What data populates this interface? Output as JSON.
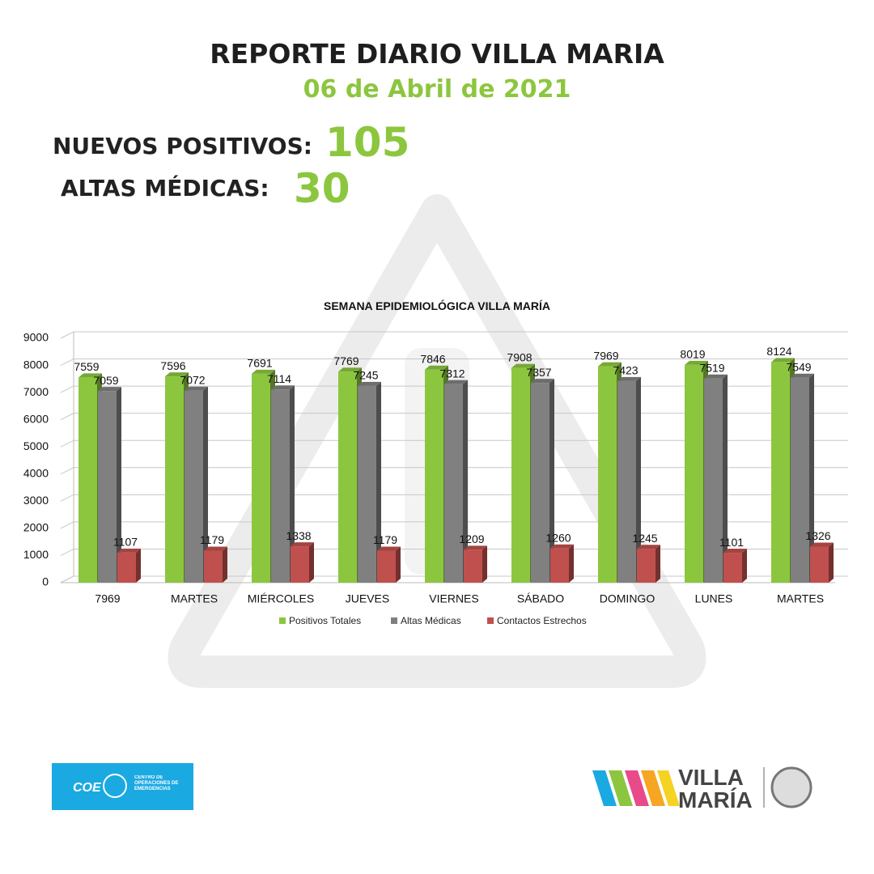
{
  "header": {
    "title": "REPORTE DIARIO VILLA MARIA",
    "date": "06 de Abril de 2021",
    "stats": [
      {
        "label": "NUEVOS POSITIVOS:",
        "value": 105
      },
      {
        "label": "ALTAS MÉDICAS:",
        "value": 30
      }
    ]
  },
  "chart_data": {
    "type": "bar",
    "title": "SEMANA EPIDEMIOLÓGICA VILLA MARÍA",
    "categories": [
      "7969",
      "MARTES",
      "MIÉRCOLES",
      "JUEVES",
      "VIERNES",
      "SÁBADO",
      "DOMINGO",
      "LUNES",
      "MARTES"
    ],
    "series": [
      {
        "name": "Positivos Totales",
        "color": "#8cc63f",
        "values": [
          7559,
          7596,
          7691,
          7769,
          7846,
          7908,
          7969,
          8019,
          8124
        ]
      },
      {
        "name": "Altas Médicas",
        "color": "#808080",
        "values": [
          7059,
          7072,
          7114,
          7245,
          7312,
          7357,
          7423,
          7519,
          7549
        ]
      },
      {
        "name": "Contactos Estrechos",
        "color": "#c0504d",
        "values": [
          1107,
          1179,
          1338,
          1179,
          1209,
          1260,
          1245,
          1101,
          1326
        ]
      }
    ],
    "ylim": [
      0,
      9000
    ],
    "yticks": [
      0,
      1000,
      2000,
      3000,
      4000,
      5000,
      6000,
      7000,
      8000,
      9000
    ],
    "grid": true,
    "legend": "bottom"
  },
  "footer": {
    "coe": "COE",
    "coe_text": "CENTRO DE OPERACIONES DE EMERGENCIAS",
    "brand_1": "VILLA",
    "brand_2": "MARÍA"
  }
}
